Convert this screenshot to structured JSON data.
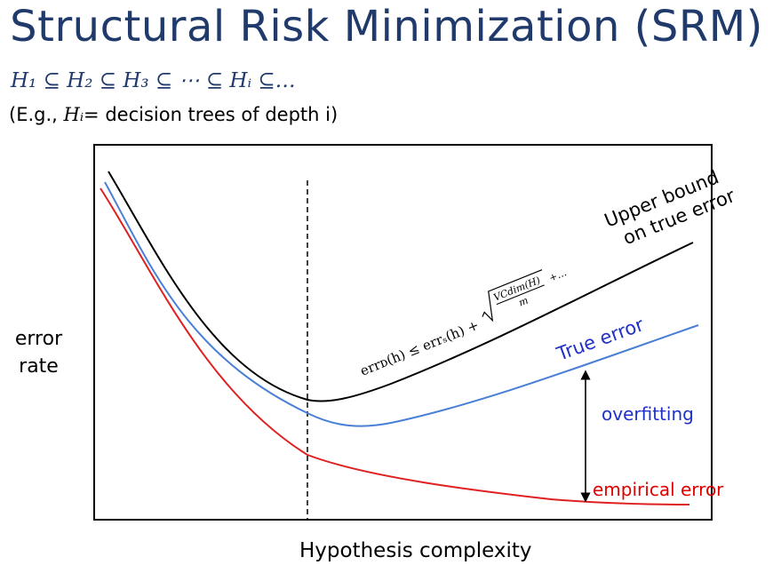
{
  "title": "Structural Risk Minimization (SRM)",
  "hypothesis_chain": "H₁ ⊆ H₂ ⊆ H₃ ⊆ ⋯ ⊆ Hᵢ ⊆…",
  "example": {
    "prefix": "(E.g., ",
    "symbol": "Hᵢ",
    "suffix": "= decision trees of depth i)"
  },
  "axes": {
    "ylabel_line1": "error",
    "ylabel_line2": "rate",
    "xlabel": "Hypothesis complexity"
  },
  "annotations": {
    "upper_bound_line1": "Upper bound",
    "upper_bound_line2": "on true error",
    "true_error": "True error",
    "overfitting": "overfitting",
    "empirical_error": "empirical error",
    "bound_formula": "errᴅ(h) ≤ errₛ(h) +",
    "sqrt_numerator": "VCdim(H)",
    "sqrt_denominator": "m",
    "sqrt_tail": "+…"
  },
  "colors": {
    "title": "#1f3a6b",
    "chain": "#1f3a6b",
    "upper_bound": "#000000",
    "true_error": "#4a7fd6",
    "true_error_label": "#2030c8",
    "empirical_error": "#e02020",
    "empirical_label": "#e00000",
    "overfitting_label": "#2030c8"
  }
}
